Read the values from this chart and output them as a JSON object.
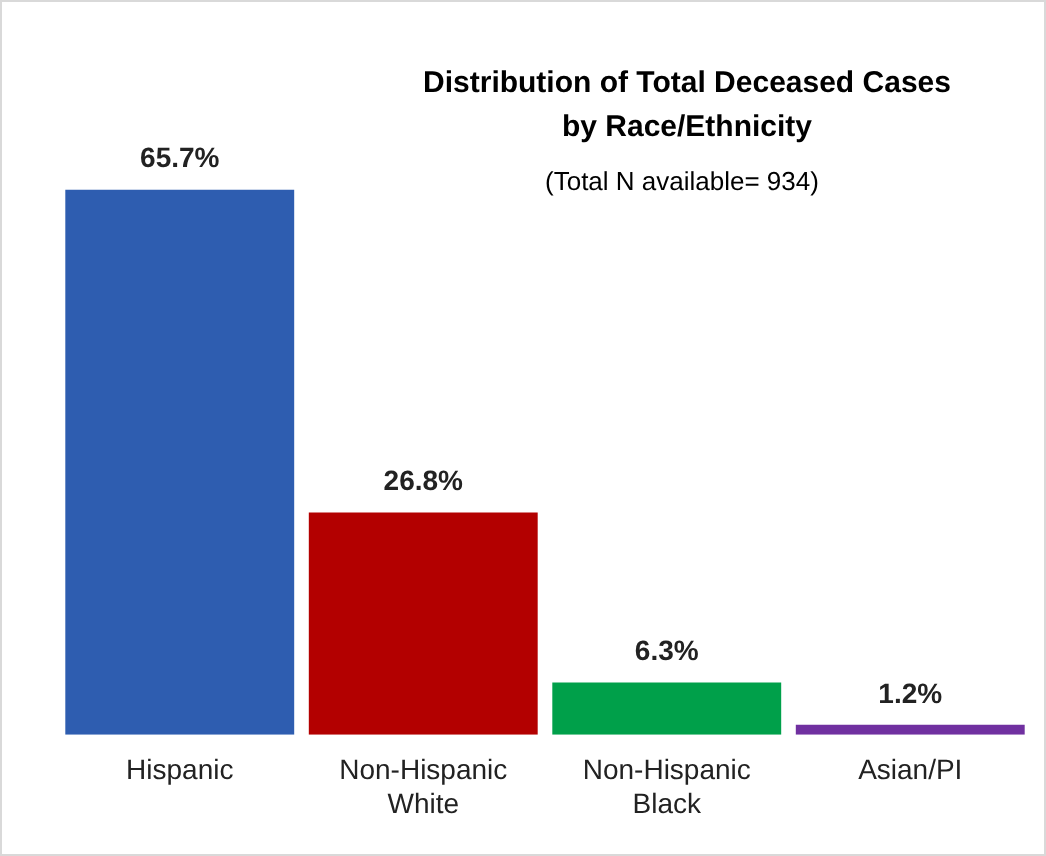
{
  "chart_data": {
    "type": "bar",
    "title": "Distribution of Total Deceased Cases by Race/Ethnicity",
    "subtitle": "(Total N available= 934)",
    "categories": [
      "Hispanic",
      "Non-Hispanic White",
      "Non-Hispanic Black",
      "Asian/PI"
    ],
    "values": [
      65.7,
      26.8,
      6.3,
      1.2
    ],
    "colors": [
      "#2e5db0",
      "#b30000",
      "#00a04a",
      "#7030a0"
    ],
    "value_labels": [
      "65.7%",
      "26.8%",
      "6.3%",
      "1.2%"
    ],
    "grid": false,
    "legend": false
  }
}
